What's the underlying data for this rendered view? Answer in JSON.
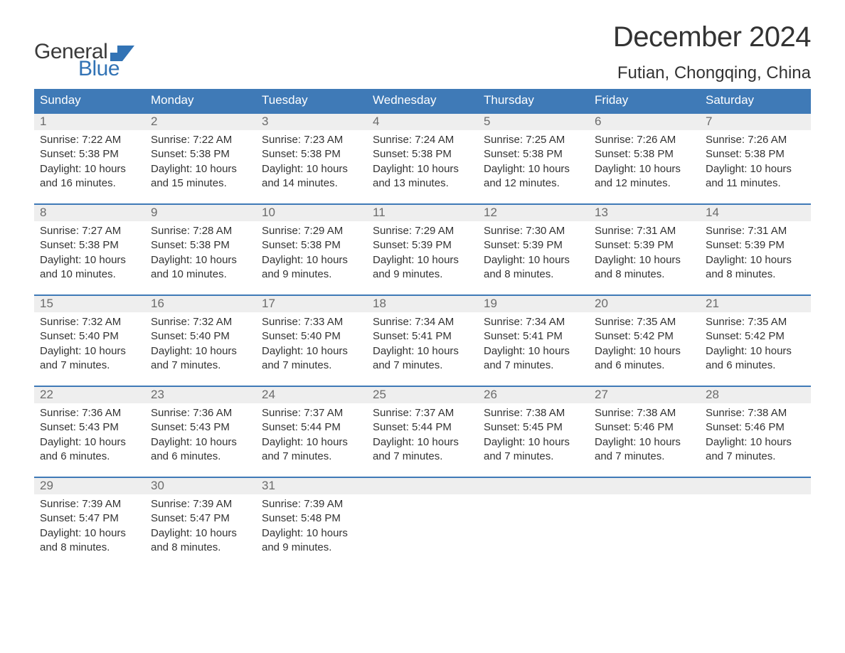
{
  "brand": {
    "part1": "General",
    "part2": "Blue",
    "flag_color": "#3273b5"
  },
  "title": "December 2024",
  "location": "Futian, Chongqing, China",
  "colors": {
    "header_bg": "#3f7ab7",
    "header_text": "#ffffff",
    "daynum_bg": "#eeeeee",
    "daynum_text": "#6b6b6b",
    "row_border": "#3f7ab7",
    "body_text": "#333333",
    "page_bg": "#ffffff"
  },
  "typography": {
    "title_fontsize": 40,
    "location_fontsize": 24,
    "dow_fontsize": 17,
    "daynum_fontsize": 17,
    "cell_fontsize": 15
  },
  "days_of_week": [
    "Sunday",
    "Monday",
    "Tuesday",
    "Wednesday",
    "Thursday",
    "Friday",
    "Saturday"
  ],
  "weeks": [
    [
      {
        "n": "1",
        "sunrise": "Sunrise: 7:22 AM",
        "sunset": "Sunset: 5:38 PM",
        "d1": "Daylight: 10 hours",
        "d2": "and 16 minutes."
      },
      {
        "n": "2",
        "sunrise": "Sunrise: 7:22 AM",
        "sunset": "Sunset: 5:38 PM",
        "d1": "Daylight: 10 hours",
        "d2": "and 15 minutes."
      },
      {
        "n": "3",
        "sunrise": "Sunrise: 7:23 AM",
        "sunset": "Sunset: 5:38 PM",
        "d1": "Daylight: 10 hours",
        "d2": "and 14 minutes."
      },
      {
        "n": "4",
        "sunrise": "Sunrise: 7:24 AM",
        "sunset": "Sunset: 5:38 PM",
        "d1": "Daylight: 10 hours",
        "d2": "and 13 minutes."
      },
      {
        "n": "5",
        "sunrise": "Sunrise: 7:25 AM",
        "sunset": "Sunset: 5:38 PM",
        "d1": "Daylight: 10 hours",
        "d2": "and 12 minutes."
      },
      {
        "n": "6",
        "sunrise": "Sunrise: 7:26 AM",
        "sunset": "Sunset: 5:38 PM",
        "d1": "Daylight: 10 hours",
        "d2": "and 12 minutes."
      },
      {
        "n": "7",
        "sunrise": "Sunrise: 7:26 AM",
        "sunset": "Sunset: 5:38 PM",
        "d1": "Daylight: 10 hours",
        "d2": "and 11 minutes."
      }
    ],
    [
      {
        "n": "8",
        "sunrise": "Sunrise: 7:27 AM",
        "sunset": "Sunset: 5:38 PM",
        "d1": "Daylight: 10 hours",
        "d2": "and 10 minutes."
      },
      {
        "n": "9",
        "sunrise": "Sunrise: 7:28 AM",
        "sunset": "Sunset: 5:38 PM",
        "d1": "Daylight: 10 hours",
        "d2": "and 10 minutes."
      },
      {
        "n": "10",
        "sunrise": "Sunrise: 7:29 AM",
        "sunset": "Sunset: 5:38 PM",
        "d1": "Daylight: 10 hours",
        "d2": "and 9 minutes."
      },
      {
        "n": "11",
        "sunrise": "Sunrise: 7:29 AM",
        "sunset": "Sunset: 5:39 PM",
        "d1": "Daylight: 10 hours",
        "d2": "and 9 minutes."
      },
      {
        "n": "12",
        "sunrise": "Sunrise: 7:30 AM",
        "sunset": "Sunset: 5:39 PM",
        "d1": "Daylight: 10 hours",
        "d2": "and 8 minutes."
      },
      {
        "n": "13",
        "sunrise": "Sunrise: 7:31 AM",
        "sunset": "Sunset: 5:39 PM",
        "d1": "Daylight: 10 hours",
        "d2": "and 8 minutes."
      },
      {
        "n": "14",
        "sunrise": "Sunrise: 7:31 AM",
        "sunset": "Sunset: 5:39 PM",
        "d1": "Daylight: 10 hours",
        "d2": "and 8 minutes."
      }
    ],
    [
      {
        "n": "15",
        "sunrise": "Sunrise: 7:32 AM",
        "sunset": "Sunset: 5:40 PM",
        "d1": "Daylight: 10 hours",
        "d2": "and 7 minutes."
      },
      {
        "n": "16",
        "sunrise": "Sunrise: 7:32 AM",
        "sunset": "Sunset: 5:40 PM",
        "d1": "Daylight: 10 hours",
        "d2": "and 7 minutes."
      },
      {
        "n": "17",
        "sunrise": "Sunrise: 7:33 AM",
        "sunset": "Sunset: 5:40 PM",
        "d1": "Daylight: 10 hours",
        "d2": "and 7 minutes."
      },
      {
        "n": "18",
        "sunrise": "Sunrise: 7:34 AM",
        "sunset": "Sunset: 5:41 PM",
        "d1": "Daylight: 10 hours",
        "d2": "and 7 minutes."
      },
      {
        "n": "19",
        "sunrise": "Sunrise: 7:34 AM",
        "sunset": "Sunset: 5:41 PM",
        "d1": "Daylight: 10 hours",
        "d2": "and 7 minutes."
      },
      {
        "n": "20",
        "sunrise": "Sunrise: 7:35 AM",
        "sunset": "Sunset: 5:42 PM",
        "d1": "Daylight: 10 hours",
        "d2": "and 6 minutes."
      },
      {
        "n": "21",
        "sunrise": "Sunrise: 7:35 AM",
        "sunset": "Sunset: 5:42 PM",
        "d1": "Daylight: 10 hours",
        "d2": "and 6 minutes."
      }
    ],
    [
      {
        "n": "22",
        "sunrise": "Sunrise: 7:36 AM",
        "sunset": "Sunset: 5:43 PM",
        "d1": "Daylight: 10 hours",
        "d2": "and 6 minutes."
      },
      {
        "n": "23",
        "sunrise": "Sunrise: 7:36 AM",
        "sunset": "Sunset: 5:43 PM",
        "d1": "Daylight: 10 hours",
        "d2": "and 6 minutes."
      },
      {
        "n": "24",
        "sunrise": "Sunrise: 7:37 AM",
        "sunset": "Sunset: 5:44 PM",
        "d1": "Daylight: 10 hours",
        "d2": "and 7 minutes."
      },
      {
        "n": "25",
        "sunrise": "Sunrise: 7:37 AM",
        "sunset": "Sunset: 5:44 PM",
        "d1": "Daylight: 10 hours",
        "d2": "and 7 minutes."
      },
      {
        "n": "26",
        "sunrise": "Sunrise: 7:38 AM",
        "sunset": "Sunset: 5:45 PM",
        "d1": "Daylight: 10 hours",
        "d2": "and 7 minutes."
      },
      {
        "n": "27",
        "sunrise": "Sunrise: 7:38 AM",
        "sunset": "Sunset: 5:46 PM",
        "d1": "Daylight: 10 hours",
        "d2": "and 7 minutes."
      },
      {
        "n": "28",
        "sunrise": "Sunrise: 7:38 AM",
        "sunset": "Sunset: 5:46 PM",
        "d1": "Daylight: 10 hours",
        "d2": "and 7 minutes."
      }
    ],
    [
      {
        "n": "29",
        "sunrise": "Sunrise: 7:39 AM",
        "sunset": "Sunset: 5:47 PM",
        "d1": "Daylight: 10 hours",
        "d2": "and 8 minutes."
      },
      {
        "n": "30",
        "sunrise": "Sunrise: 7:39 AM",
        "sunset": "Sunset: 5:47 PM",
        "d1": "Daylight: 10 hours",
        "d2": "and 8 minutes."
      },
      {
        "n": "31",
        "sunrise": "Sunrise: 7:39 AM",
        "sunset": "Sunset: 5:48 PM",
        "d1": "Daylight: 10 hours",
        "d2": "and 9 minutes."
      },
      null,
      null,
      null,
      null
    ]
  ]
}
